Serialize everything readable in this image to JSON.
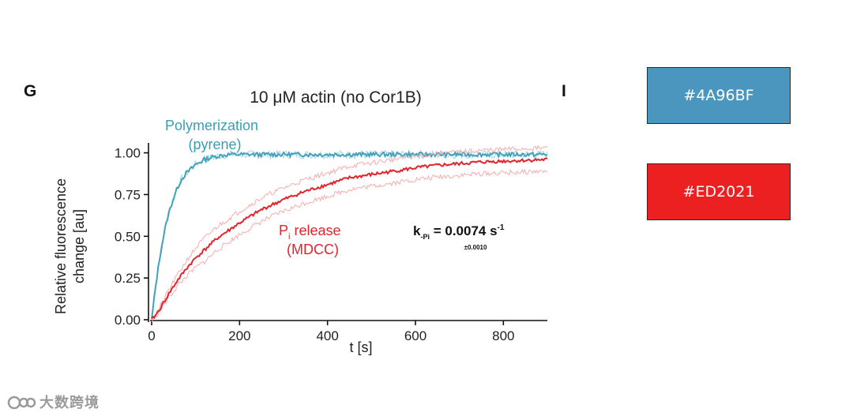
{
  "panels": {
    "left_label": "G",
    "right_label": "I"
  },
  "swatches": [
    {
      "label": "#4A96BF",
      "color": "#4A96BF"
    },
    {
      "label": "#ED2021",
      "color": "#ED2021"
    }
  ],
  "watermark": {
    "text": "大数跨境"
  },
  "chart_data": {
    "type": "line",
    "title": "10 μM actin (no Cor1B)",
    "xlabel": "t [s]",
    "ylabel_lines": [
      "Relative fluorescence",
      "change [au]"
    ],
    "xlim": [
      0,
      900
    ],
    "ylim": [
      0,
      1.05
    ],
    "x_ticks": [
      0,
      200,
      400,
      600,
      800
    ],
    "y_ticks": [
      0.0,
      0.25,
      0.5,
      0.75,
      1.0
    ],
    "y_tick_labels": [
      "0.00",
      "0.25",
      "0.50",
      "0.75",
      "1.00"
    ],
    "x_tick_labels": [
      "0",
      "200",
      "400",
      "600",
      "800"
    ],
    "series": [
      {
        "name": "Polymerization (pyrene)",
        "label_lines": [
          "Polymerization",
          "(pyrene)"
        ],
        "color": "#3A9DB8",
        "x": [
          0,
          10,
          20,
          30,
          40,
          50,
          60,
          70,
          80,
          100,
          120,
          140,
          160,
          180,
          200,
          250,
          300,
          400,
          500,
          600,
          700,
          800,
          900
        ],
        "y": [
          0.0,
          0.22,
          0.4,
          0.54,
          0.65,
          0.73,
          0.8,
          0.85,
          0.88,
          0.93,
          0.96,
          0.975,
          0.985,
          0.99,
          0.99,
          0.99,
          0.99,
          0.99,
          0.99,
          0.99,
          0.99,
          0.99,
          0.99
        ]
      },
      {
        "name": "Pi release (MDCC)",
        "label_main": "P",
        "label_sub": "i",
        "label_rest": " release",
        "label_line2": "(MDCC)",
        "color": "#E3242B",
        "x": [
          0,
          10,
          20,
          40,
          60,
          80,
          100,
          150,
          200,
          250,
          300,
          350,
          400,
          450,
          500,
          550,
          600,
          650,
          700,
          750,
          800,
          850,
          900
        ],
        "y": [
          0.0,
          0.03,
          0.07,
          0.16,
          0.24,
          0.31,
          0.37,
          0.49,
          0.58,
          0.66,
          0.72,
          0.77,
          0.81,
          0.85,
          0.87,
          0.89,
          0.91,
          0.925,
          0.935,
          0.945,
          0.95,
          0.955,
          0.96
        ],
        "band_offset": 0.07
      }
    ],
    "annotation": {
      "k_main": "k",
      "k_sub": "-Pi",
      "k_value": " = 0.0074 s",
      "k_sup": "-1",
      "k_err": "±0.0010"
    }
  }
}
